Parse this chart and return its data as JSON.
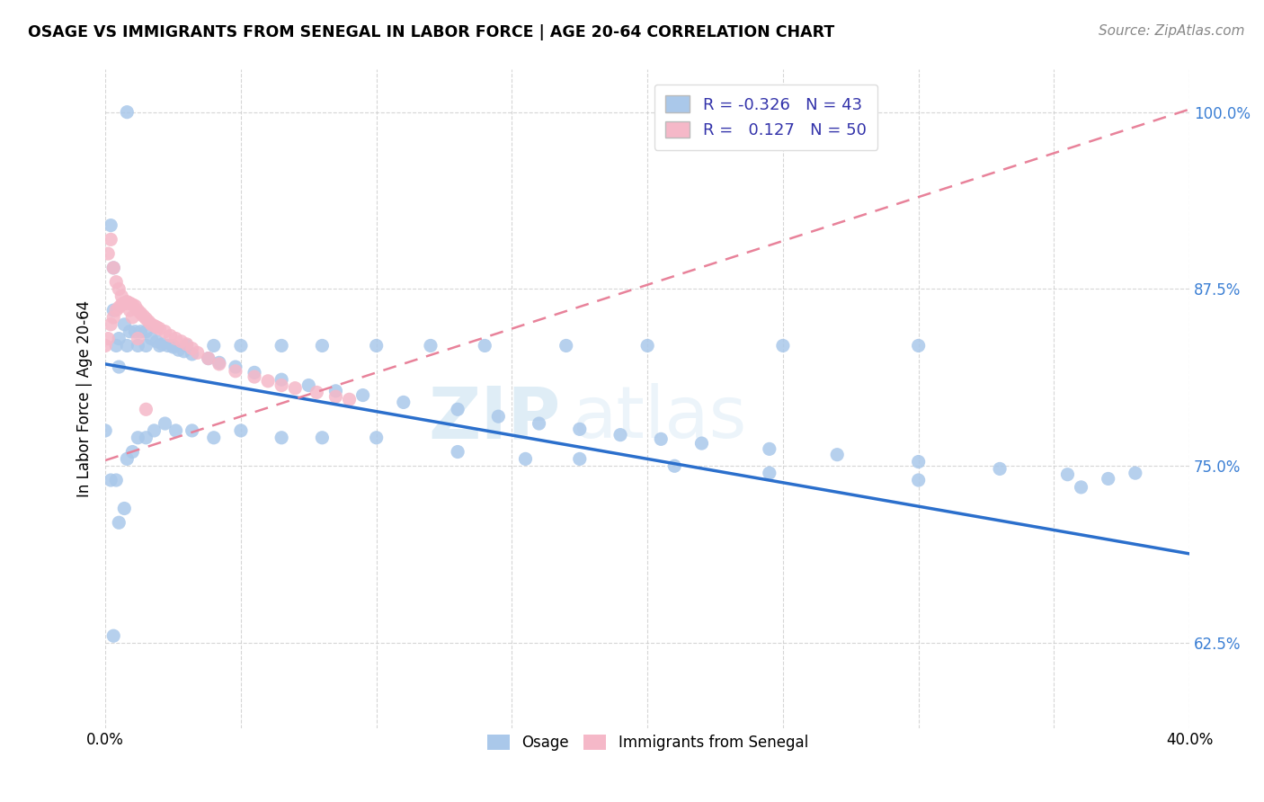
{
  "title": "OSAGE VS IMMIGRANTS FROM SENEGAL IN LABOR FORCE | AGE 20-64 CORRELATION CHART",
  "source": "Source: ZipAtlas.com",
  "ylabel": "In Labor Force | Age 20-64",
  "xlim": [
    0.0,
    0.4
  ],
  "ylim": [
    0.565,
    1.03
  ],
  "xtick_positions": [
    0.0,
    0.05,
    0.1,
    0.15,
    0.2,
    0.25,
    0.3,
    0.35,
    0.4
  ],
  "xticklabels": [
    "0.0%",
    "",
    "",
    "",
    "",
    "",
    "",
    "",
    "40.0%"
  ],
  "ytick_positions": [
    0.625,
    0.75,
    0.875,
    1.0
  ],
  "ytick_labels": [
    "62.5%",
    "75.0%",
    "87.5%",
    "100.0%"
  ],
  "legend_r_osage": "-0.326",
  "legend_n_osage": "43",
  "legend_r_senegal": "0.127",
  "legend_n_senegal": "50",
  "osage_color": "#aac8ea",
  "senegal_color": "#f5b8c8",
  "osage_line_color": "#2b6fcc",
  "senegal_line_color": "#e8829a",
  "watermark_zip": "ZIP",
  "watermark_atlas": "atlas",
  "osage_scatter_x": [
    0.008,
    0.002,
    0.003,
    0.003,
    0.005,
    0.007,
    0.009,
    0.011,
    0.013,
    0.015,
    0.017,
    0.019,
    0.021,
    0.023,
    0.025,
    0.027,
    0.029,
    0.032,
    0.038,
    0.042,
    0.048,
    0.055,
    0.065,
    0.075,
    0.085,
    0.095,
    0.11,
    0.13,
    0.145,
    0.16,
    0.175,
    0.19,
    0.205,
    0.22,
    0.245,
    0.27,
    0.3,
    0.33,
    0.355,
    0.37,
    0.002,
    0.004,
    0.0
  ],
  "osage_scatter_y": [
    1.0,
    0.92,
    0.89,
    0.86,
    0.84,
    0.85,
    0.845,
    0.845,
    0.845,
    0.845,
    0.84,
    0.838,
    0.836,
    0.835,
    0.834,
    0.832,
    0.831,
    0.829,
    0.826,
    0.823,
    0.82,
    0.816,
    0.811,
    0.807,
    0.803,
    0.8,
    0.795,
    0.79,
    0.785,
    0.78,
    0.776,
    0.772,
    0.769,
    0.766,
    0.762,
    0.758,
    0.753,
    0.748,
    0.744,
    0.741,
    0.74,
    0.74,
    0.775
  ],
  "osage_scatter_x2": [
    0.003,
    0.005,
    0.007,
    0.008,
    0.01,
    0.012,
    0.015,
    0.018,
    0.022,
    0.026,
    0.032,
    0.04,
    0.05,
    0.065,
    0.08,
    0.1,
    0.13,
    0.155,
    0.175,
    0.21,
    0.245,
    0.3,
    0.36,
    0.38,
    0.005,
    0.004,
    0.008,
    0.012,
    0.015,
    0.02,
    0.025,
    0.03,
    0.04,
    0.05,
    0.065,
    0.08,
    0.1,
    0.12,
    0.14,
    0.17,
    0.2,
    0.25,
    0.3
  ],
  "osage_scatter_y2": [
    0.63,
    0.71,
    0.72,
    0.755,
    0.76,
    0.77,
    0.77,
    0.775,
    0.78,
    0.775,
    0.775,
    0.77,
    0.775,
    0.77,
    0.77,
    0.77,
    0.76,
    0.755,
    0.755,
    0.75,
    0.745,
    0.74,
    0.735,
    0.745,
    0.82,
    0.835,
    0.835,
    0.835,
    0.835,
    0.835,
    0.835,
    0.835,
    0.835,
    0.835,
    0.835,
    0.835,
    0.835,
    0.835,
    0.835,
    0.835,
    0.835,
    0.835,
    0.835
  ],
  "senegal_scatter_x": [
    0.0,
    0.001,
    0.002,
    0.003,
    0.004,
    0.005,
    0.006,
    0.007,
    0.008,
    0.009,
    0.01,
    0.011,
    0.012,
    0.013,
    0.014,
    0.015,
    0.016,
    0.017,
    0.018,
    0.019,
    0.02,
    0.022,
    0.024,
    0.026,
    0.028,
    0.03,
    0.032,
    0.034,
    0.038,
    0.042,
    0.048,
    0.055,
    0.06,
    0.065,
    0.07,
    0.078,
    0.085,
    0.09,
    0.001,
    0.002,
    0.003,
    0.004,
    0.005,
    0.006,
    0.007,
    0.008,
    0.009,
    0.01,
    0.012,
    0.015
  ],
  "senegal_scatter_y": [
    0.835,
    0.84,
    0.85,
    0.855,
    0.86,
    0.862,
    0.864,
    0.865,
    0.866,
    0.865,
    0.864,
    0.863,
    0.86,
    0.858,
    0.856,
    0.854,
    0.852,
    0.85,
    0.849,
    0.848,
    0.847,
    0.845,
    0.842,
    0.84,
    0.838,
    0.836,
    0.833,
    0.83,
    0.826,
    0.822,
    0.817,
    0.813,
    0.81,
    0.807,
    0.805,
    0.802,
    0.799,
    0.797,
    0.9,
    0.91,
    0.89,
    0.88,
    0.875,
    0.87,
    0.865,
    0.865,
    0.86,
    0.855,
    0.84,
    0.79
  ],
  "osage_line_x": [
    0.0,
    0.4
  ],
  "osage_line_y": [
    0.822,
    0.688
  ],
  "senegal_line_x": [
    0.0,
    0.4
  ],
  "senegal_line_y": [
    0.754,
    1.002
  ]
}
